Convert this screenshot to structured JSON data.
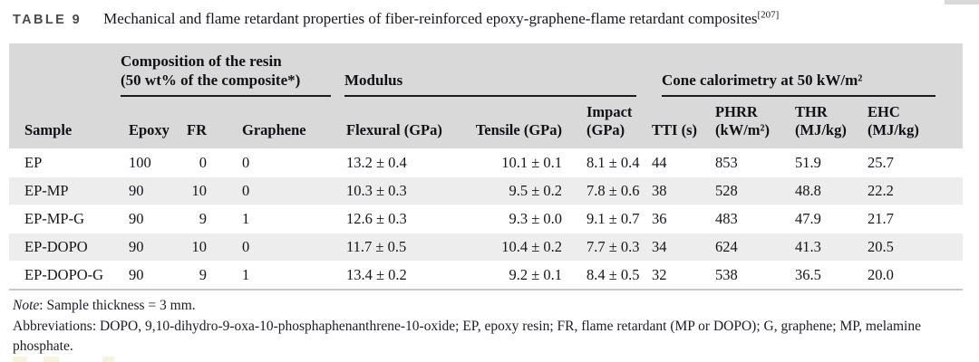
{
  "header": {
    "table_label": "TABLE 9",
    "caption": "Mechanical and flame retardant properties of fiber-reinforced epoxy-graphene-flame retardant composites",
    "citation": "[207]"
  },
  "table": {
    "groups": {
      "composition_line1": "Composition of the resin",
      "composition_line2": "(50 wt% of the composite*)",
      "modulus": "Modulus",
      "cone": "Cone calorimetry at 50 kW/m²"
    },
    "columns": [
      {
        "l1": "",
        "l2": "Sample"
      },
      {
        "l1": "",
        "l2": "Epoxy"
      },
      {
        "l1": "",
        "l2": "FR"
      },
      {
        "l1": "",
        "l2": "Graphene"
      },
      {
        "l1": "",
        "l2": "Flexural (GPa)"
      },
      {
        "l1": "",
        "l2": "Tensile (GPa)"
      },
      {
        "l1": "Impact",
        "l2": "(GPa)"
      },
      {
        "l1": "",
        "l2": "TTI (s)"
      },
      {
        "l1": "PHRR",
        "l2": "(kW/m²)"
      },
      {
        "l1": "THR",
        "l2": "(MJ/kg)"
      },
      {
        "l1": "EHC",
        "l2": "(MJ/kg)"
      }
    ],
    "rows": [
      [
        "EP",
        "100",
        "0",
        "0",
        "13.2 ± 0.4",
        "10.1 ± 0.1",
        "8.1 ± 0.4",
        "44",
        "853",
        "51.9",
        "25.7"
      ],
      [
        "EP-MP",
        "90",
        "10",
        "0",
        "10.3 ± 0.3",
        "9.5 ± 0.2",
        "7.8 ± 0.6",
        "38",
        "528",
        "48.8",
        "22.2"
      ],
      [
        "EP-MP-G",
        "90",
        "9",
        "1",
        "12.6 ± 0.3",
        "9.3 ± 0.0",
        "9.1 ± 0.7",
        "36",
        "483",
        "47.9",
        "21.7"
      ],
      [
        "EP-DOPO",
        "90",
        "10",
        "0",
        "11.7 ± 0.5",
        "10.4 ± 0.2",
        "7.7 ± 0.3",
        "34",
        "624",
        "41.3",
        "20.5"
      ],
      [
        "EP-DOPO-G",
        "90",
        "9",
        "1",
        "13.4 ± 0.2",
        "9.2 ± 0.1",
        "8.4 ± 0.5",
        "32",
        "538",
        "36.5",
        "20.0"
      ]
    ]
  },
  "footer": {
    "note_label": "Note",
    "note_text": ": Sample thickness = 3 mm.",
    "abbreviations": "Abbreviations: DOPO, 9,10-dihydro-9-oxa-10-phosphaphenanthrene-10-oxide; EP, epoxy resin; FR, flame retardant (MP or DOPO); G, graphene; MP, melamine phosphate."
  },
  "colors": {
    "header_band": "#d9d9d9",
    "row_stripe": "#ededed",
    "group_rule": "#1c1c1c",
    "table_label_gray": "#4b4b4b"
  }
}
